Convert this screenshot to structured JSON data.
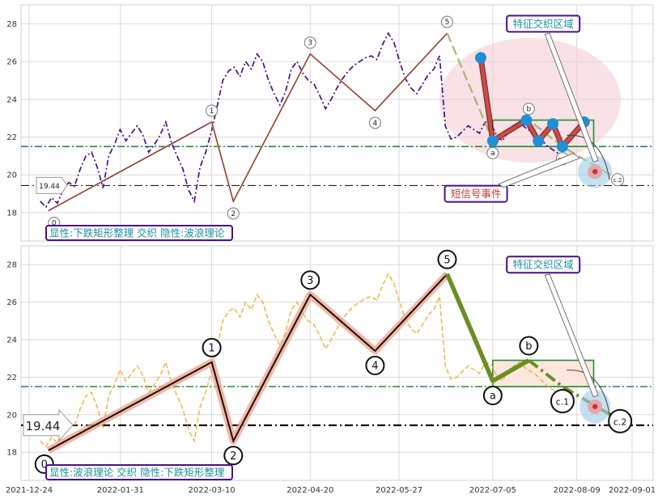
{
  "chart_data": {
    "type": "line",
    "x_ticks": [
      "2021-12-24",
      "2022-01-31",
      "2022-03-10",
      "2022-04-20",
      "2022-05-27",
      "2022-07-05",
      "2022-08-09",
      "2022-09-01"
    ],
    "ylim": [
      16.5,
      29.0
    ],
    "y_ticks": [
      18,
      20,
      22,
      24,
      26,
      28
    ],
    "price_path": [
      18.6,
      18.3,
      18.8,
      18.5,
      19.2,
      19.6,
      19.4,
      20.3,
      21.0,
      21.2,
      20.4,
      19.3,
      21.0,
      21.6,
      22.4,
      21.8,
      22.2,
      22.6,
      22.1,
      21.2,
      21.6,
      22.1,
      22.8,
      21.7,
      21.0,
      20.3,
      19.2,
      18.6,
      20.4,
      21.2,
      22.3,
      23.6,
      25.0,
      25.5,
      25.7,
      25.2,
      26.0,
      25.6,
      26.4,
      26.0,
      25.0,
      24.3,
      23.7,
      24.4,
      25.6,
      26.0,
      25.4,
      25.0,
      24.8,
      24.2,
      23.5,
      24.0,
      24.6,
      25.1,
      25.5,
      25.8,
      26.0,
      26.2,
      26.3,
      26.1,
      26.9,
      27.5,
      27.0,
      26.0,
      25.1,
      24.6,
      24.3,
      24.8,
      25.3,
      25.6,
      26.3,
      22.6,
      21.9,
      22.0,
      22.3,
      22.6,
      22.4,
      22.2,
      22.8,
      22.7,
      22.1,
      21.8,
      22.3,
      22.6,
      22.8,
      22.5,
      22.3,
      22.1,
      21.8,
      21.5,
      21.3,
      21.1
    ],
    "top_panel": {
      "label": "显性:下跌矩形整理 交织 隐性:波浪理论",
      "wave_points": [
        {
          "label": "0",
          "x": "2022-01-01",
          "y": 18.1
        },
        {
          "label": "1",
          "x": "2022-03-10",
          "y": 22.8
        },
        {
          "label": "2",
          "x": "2022-03-19",
          "y": 18.6
        },
        {
          "label": "3",
          "x": "2022-04-20",
          "y": 26.4
        },
        {
          "label": "4",
          "x": "2022-05-17",
          "y": 23.4
        },
        {
          "label": "5",
          "x": "2022-06-16",
          "y": 27.5
        },
        {
          "label": "a",
          "x": "2022-07-05",
          "y": 21.8
        },
        {
          "label": "b",
          "x": "2022-07-20",
          "y": 22.9
        },
        {
          "label": "c.1",
          "x": "2022-08-03",
          "y": 21.5
        },
        {
          "label": "c.2",
          "x": "2022-08-27",
          "y": 19.7
        }
      ],
      "signal_points": [
        {
          "x": "2022-06-30",
          "y": 26.2
        },
        {
          "x": "2022-07-05",
          "y": 21.8
        },
        {
          "x": "2022-07-19",
          "y": 22.9
        },
        {
          "x": "2022-07-24",
          "y": 21.8
        },
        {
          "x": "2022-07-30",
          "y": 22.7
        },
        {
          "x": "2022-08-03",
          "y": 21.5
        },
        {
          "x": "2022-08-12",
          "y": 22.8
        }
      ],
      "annotations": [
        {
          "text": "特征交织区域",
          "x": "2022-07-26",
          "y": 28.0,
          "style": "teal"
        },
        {
          "text": "短信号事件",
          "x": "2022-06-28",
          "y": 19.0,
          "style": "red"
        }
      ]
    },
    "bottom_panel": {
      "label": "显性:波浪理论 交织 隐性:下跌矩形整理",
      "wave_points": [
        {
          "label": "0",
          "x": "2022-01-01",
          "y": 18.1
        },
        {
          "label": "1",
          "x": "2022-03-10",
          "y": 22.8
        },
        {
          "label": "2",
          "x": "2022-03-19",
          "y": 18.6
        },
        {
          "label": "3",
          "x": "2022-04-20",
          "y": 26.4
        },
        {
          "label": "4",
          "x": "2022-05-17",
          "y": 23.4
        },
        {
          "label": "5",
          "x": "2022-06-16",
          "y": 27.5
        },
        {
          "label": "a",
          "x": "2022-07-05",
          "y": 21.8
        },
        {
          "label": "b",
          "x": "2022-07-20",
          "y": 22.9
        },
        {
          "label": "c.1",
          "x": "2022-08-03",
          "y": 21.5
        },
        {
          "label": "c.2",
          "x": "2022-08-27",
          "y": 19.7
        }
      ],
      "annotations": [
        {
          "text": "特征交织区域",
          "x": "2022-07-26",
          "y": 28.0,
          "style": "teal"
        }
      ]
    },
    "hlines": [
      {
        "y": 21.5,
        "style": "green-dashdot"
      },
      {
        "y": 19.44,
        "style": "black-dashdot",
        "label": "19.44"
      }
    ],
    "rectangle": {
      "x0": "2022-07-05",
      "x1": "2022-08-16",
      "y0": 21.5,
      "y1": 22.9
    },
    "colors": {
      "wave_line": "#f0a48c",
      "price_top": "#4b0f8a",
      "price_bottom": "#f0b13b",
      "green": "#1e8f3a",
      "signal": "#1f8fd6",
      "purple_border": "#4b0f8a",
      "teal_text": "#1a8fa6",
      "red_text": "#c0392b",
      "olive": "#6b8e23"
    }
  }
}
